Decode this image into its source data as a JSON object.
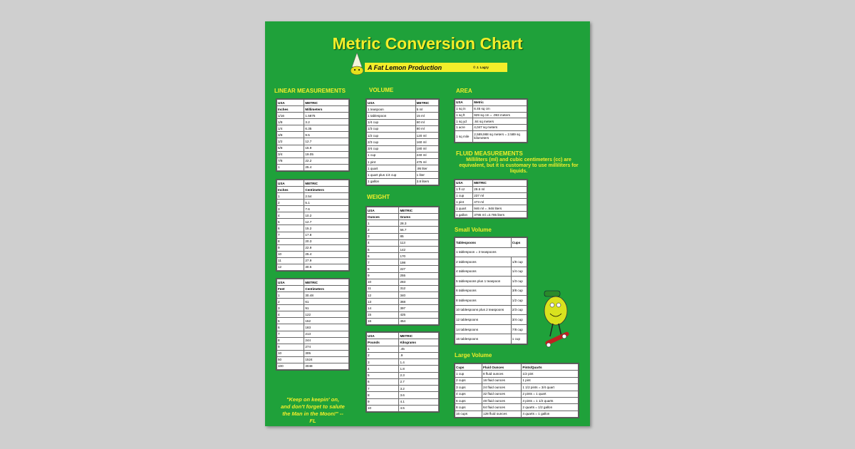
{
  "title": "Metric Conversion Chart",
  "subtitle": "A Fat Lemon Production",
  "credit": "© J. Lagry",
  "headings": [
    "LINEAR MEASUREMENTS",
    "VOLUME",
    "WEIGHT",
    "AREA",
    "FLUID MEASUREMENTS",
    "Small Volume",
    "Large Volume"
  ],
  "fluid_note": "Milliliters (ml) and cubic centimeters (cc) are equivalent, but it is customary to use milliliters for liquids.",
  "quote": [
    "\"Keep on keepin' on,",
    "and don't forget to salute",
    "the Man in the Moon!\" --",
    "FL"
  ],
  "tables": [
    {
      "header": [
        [
          "USA",
          "METRIC"
        ],
        [
          "Inches",
          "Millimeters"
        ]
      ],
      "rows": [
        [
          "1/16",
          "1.5875"
        ],
        [
          "1/8",
          "3.2"
        ],
        [
          "1/4",
          "6.35"
        ],
        [
          "3/8",
          "9.5"
        ],
        [
          "1/2",
          "12.7"
        ],
        [
          "5/8",
          "15.9"
        ],
        [
          "3/4",
          "19.05"
        ],
        [
          "7/8",
          "22.2"
        ],
        [
          "1",
          "25.4"
        ]
      ]
    },
    {
      "header": [
        [
          "USA",
          "METRIC"
        ],
        [
          "Inches",
          "Centimeters"
        ]
      ],
      "rows": [
        [
          "1",
          "2.54"
        ],
        [
          "2",
          "5.1"
        ],
        [
          "3",
          "7.6"
        ],
        [
          "4",
          "10.2"
        ],
        [
          "5",
          "12.7"
        ],
        [
          "6",
          "15.2"
        ],
        [
          "7",
          "17.8"
        ],
        [
          "8",
          "20.3"
        ],
        [
          "9",
          "22.9"
        ],
        [
          "10",
          "25.4"
        ],
        [
          "11",
          "27.9"
        ],
        [
          "12",
          "30.5"
        ]
      ]
    },
    {
      "header": [
        [
          "USA",
          "METRIC"
        ],
        [
          "Feet",
          "Centimeters"
        ]
      ],
      "rows": [
        [
          "1",
          "30.48"
        ],
        [
          "2",
          "61"
        ],
        [
          "3",
          "91"
        ],
        [
          "4",
          "122"
        ],
        [
          "5",
          "152"
        ],
        [
          "6",
          "183"
        ],
        [
          "7",
          "213"
        ],
        [
          "8",
          "244"
        ],
        [
          "9",
          "274"
        ],
        [
          "10",
          "305"
        ],
        [
          "50",
          "1524"
        ],
        [
          "100",
          "3048"
        ]
      ]
    },
    {
      "header": [
        [
          "USA",
          "METRIC"
        ]
      ],
      "rows": [
        [
          "1 teaspoon",
          "5 ml"
        ],
        [
          "1 tablespoon",
          "15 ml"
        ],
        [
          "1/4 cup",
          "60 ml"
        ],
        [
          "1/3 cup",
          "80 ml"
        ],
        [
          "1/2 cup",
          "120 ml"
        ],
        [
          "2/3 cup",
          "160 ml"
        ],
        [
          "3/4 cup",
          "180 ml"
        ],
        [
          "1 cup",
          "240 ml"
        ],
        [
          "1 pint",
          "475 ml"
        ],
        [
          "1 quart",
          ".95 liter"
        ],
        [
          "1 quart plus 1/4 cup",
          "1 liter"
        ],
        [
          "1 gallon",
          "3.8 liters"
        ]
      ]
    },
    {
      "header": [
        [
          "USA",
          "METRIC"
        ],
        [
          "Ounces",
          "Grams"
        ]
      ],
      "rows": [
        [
          "1",
          "28.3"
        ],
        [
          "2",
          "56.7"
        ],
        [
          "3",
          "85"
        ],
        [
          "4",
          "113"
        ],
        [
          "5",
          "142"
        ],
        [
          "6",
          "170"
        ],
        [
          "7",
          "198"
        ],
        [
          "8",
          "227"
        ],
        [
          "9",
          "255"
        ],
        [
          "10",
          "283"
        ],
        [
          "11",
          "312"
        ],
        [
          "12",
          "340"
        ],
        [
          "13",
          "368"
        ],
        [
          "14",
          "397"
        ],
        [
          "15",
          "425"
        ],
        [
          "16",
          "454"
        ]
      ]
    },
    {
      "header": [
        [
          "USA",
          "METRIC"
        ],
        [
          "Pounds",
          "Kilograms"
        ]
      ],
      "rows": [
        [
          "1",
          ".45"
        ],
        [
          "2",
          ".9"
        ],
        [
          "3",
          "1.4"
        ],
        [
          "4",
          "1.8"
        ],
        [
          "5",
          "2.3"
        ],
        [
          "6",
          "2.7"
        ],
        [
          "7",
          "3.2"
        ],
        [
          "8",
          "3.6"
        ],
        [
          "9",
          "4.1"
        ],
        [
          "10",
          "4.5"
        ]
      ]
    },
    {
      "header": [
        [
          "USA",
          "Metric"
        ]
      ],
      "rows": [
        [
          "1 sq in",
          "6.45 sq cm"
        ],
        [
          "1 sq ft",
          "929 sq cm = .093 meters"
        ],
        [
          "1 sq yd",
          ".84 sq meters"
        ],
        [
          "1 acre",
          "4,047 sq meters"
        ],
        [
          "1 sq mile",
          "2,589,988 sq meters = 2.589 sq kilometers"
        ]
      ]
    },
    {
      "header": [
        [
          "USA",
          "METRIC"
        ]
      ],
      "rows": [
        [
          "1 fl oz",
          "29.6 ml"
        ],
        [
          "1 cup",
          "237 ml"
        ],
        [
          "1 pint",
          "473 ml"
        ],
        [
          "1 quart",
          "946 ml = .946 liters"
        ],
        [
          "1 gallon",
          "3785 ml =3.785 liters"
        ]
      ]
    },
    {
      "header": [
        [
          "Tablespoons",
          "Cups"
        ]
      ],
      "rows": [
        [
          "1 tablespoon = 3 teaspoons"
        ],
        [
          "2 tablespoons",
          "1/8 cup"
        ],
        [
          "4 tablespoons",
          "1/4 cup"
        ],
        [
          "5 tablespoons plus 1 teaspoon",
          "1/3 cup"
        ],
        [
          "6 tablespoons",
          "3/8 cup"
        ],
        [
          "8 tablespoons",
          "1/2 cup"
        ],
        [
          "10 tablespoons plus 2 teaspoons",
          "2/3 cup"
        ],
        [
          "12 tablespoons",
          "3/4 cup"
        ],
        [
          "14 tablespoons",
          "7/8 cup"
        ],
        [
          "16 tablespoons",
          "1 cup"
        ]
      ]
    },
    {
      "header": [
        [
          "Cups",
          "Fluid Ounces",
          "Pints/Quarts"
        ]
      ],
      "rows": [
        [
          "1 cup",
          "8 fluid ounces",
          "1/2 pint"
        ],
        [
          "2 cups",
          "16 fluid ounces",
          "1 pint"
        ],
        [
          "3 cups",
          "24 fluid ounces",
          "1 1/2 pints = 3/4 quart"
        ],
        [
          "4 cups",
          "32 fluid ounces",
          "2 pints = 1 quart"
        ],
        [
          "6 cups",
          "48 fluid ounces",
          "3 pints = 1 1/2 quarts"
        ],
        [
          "8 cups",
          "64 fluid ounces",
          "2 quarts = 1/2 gallon"
        ],
        [
          "16 cups",
          "128 fluid ounces",
          "4 quarts = 1 gallon"
        ]
      ]
    }
  ]
}
